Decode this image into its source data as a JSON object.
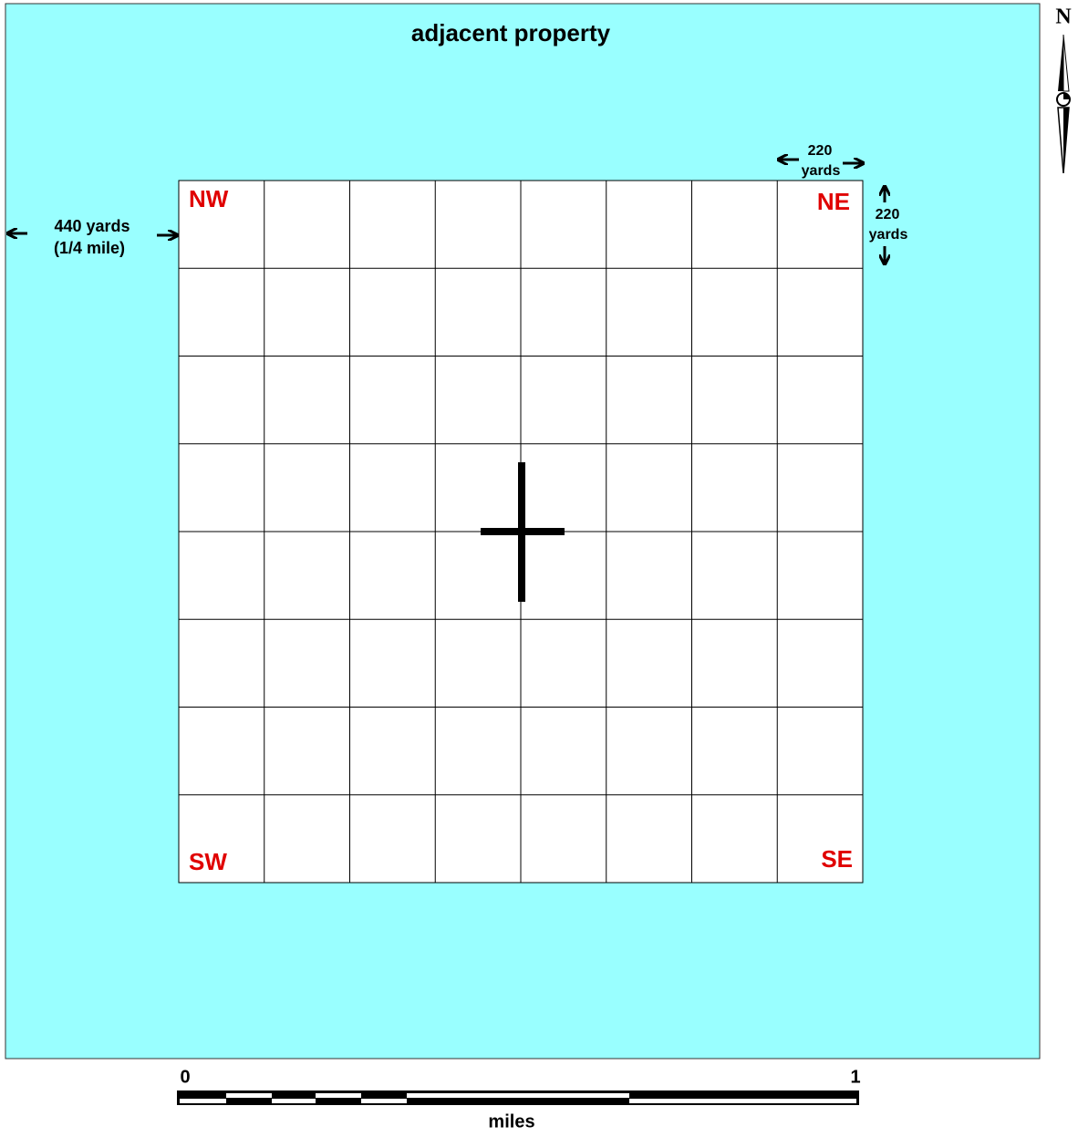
{
  "title": "adjacent property",
  "corners": {
    "nw": "NW",
    "ne": "NE",
    "sw": "SW",
    "se": "SE"
  },
  "annotations": {
    "west": [
      "440 yards",
      "(1/4 mile)"
    ],
    "cell_width": [
      "220",
      "yards"
    ],
    "cell_height": [
      "220",
      "yards"
    ]
  },
  "compass": "N",
  "scale": {
    "start": "0",
    "end": "1",
    "unit": "miles"
  }
}
